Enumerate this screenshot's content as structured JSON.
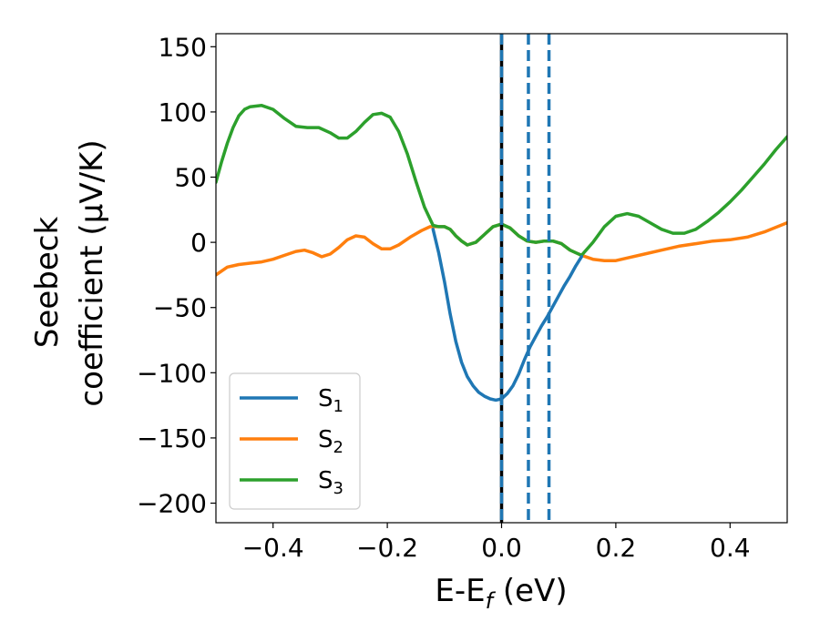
{
  "chart_data": {
    "type": "line",
    "xlabel_main": "E-E",
    "xlabel_sub": "f",
    "xlabel_unit": " (eV)",
    "ylabel_line1": "Seebeck",
    "ylabel_line2": "coefficient  (μV/K)",
    "xlim": [
      -0.5,
      0.5
    ],
    "ylim": [
      -215,
      160
    ],
    "x_ticks": [
      -0.4,
      -0.2,
      0.0,
      0.2,
      0.4
    ],
    "x_tick_labels": [
      "−0.4",
      "−0.2",
      "0.0",
      "0.2",
      "0.4"
    ],
    "y_ticks": [
      -200,
      -150,
      -100,
      -50,
      0,
      50,
      100,
      150
    ],
    "y_tick_labels": [
      "−200",
      "−150",
      "−100",
      "−50",
      "0",
      "50",
      "100",
      "150"
    ],
    "grid": false,
    "legend_position": "lower-left",
    "series": [
      {
        "name_main": "S",
        "name_sub": "1",
        "color": "#1f77b4",
        "points": [
          [
            -0.12,
            10
          ],
          [
            -0.11,
            -8
          ],
          [
            -0.1,
            -30
          ],
          [
            -0.09,
            -55
          ],
          [
            -0.08,
            -76
          ],
          [
            -0.07,
            -92
          ],
          [
            -0.06,
            -103
          ],
          [
            -0.05,
            -110
          ],
          [
            -0.04,
            -115
          ],
          [
            -0.03,
            -118
          ],
          [
            -0.02,
            -120
          ],
          [
            -0.01,
            -121
          ],
          [
            0.0,
            -120
          ],
          [
            0.01,
            -116
          ],
          [
            0.02,
            -110
          ],
          [
            0.03,
            -101
          ],
          [
            0.04,
            -90
          ],
          [
            0.05,
            -80
          ],
          [
            0.06,
            -72
          ],
          [
            0.07,
            -64
          ],
          [
            0.08,
            -57
          ],
          [
            0.09,
            -49
          ],
          [
            0.1,
            -41
          ],
          [
            0.11,
            -33
          ],
          [
            0.12,
            -26
          ],
          [
            0.13,
            -18
          ],
          [
            0.14,
            -11
          ]
        ]
      },
      {
        "name_main": "S",
        "name_sub": "2",
        "color": "#ff7f0e",
        "points": [
          [
            -0.5,
            -25
          ],
          [
            -0.48,
            -19
          ],
          [
            -0.46,
            -17
          ],
          [
            -0.44,
            -16
          ],
          [
            -0.42,
            -15
          ],
          [
            -0.4,
            -13
          ],
          [
            -0.38,
            -10
          ],
          [
            -0.36,
            -7
          ],
          [
            -0.345,
            -6
          ],
          [
            -0.33,
            -8
          ],
          [
            -0.315,
            -11
          ],
          [
            -0.3,
            -9
          ],
          [
            -0.285,
            -4
          ],
          [
            -0.27,
            2
          ],
          [
            -0.255,
            5
          ],
          [
            -0.24,
            4
          ],
          [
            -0.225,
            -1
          ],
          [
            -0.21,
            -5
          ],
          [
            -0.195,
            -5
          ],
          [
            -0.18,
            -2
          ],
          [
            -0.16,
            4
          ],
          [
            -0.14,
            9
          ],
          [
            -0.125,
            12
          ],
          [
            -0.11,
            12
          ],
          [
            -0.1,
            12
          ],
          [
            -0.09,
            10
          ],
          [
            -0.08,
            5
          ],
          [
            -0.07,
            1
          ],
          [
            -0.06,
            -2
          ],
          [
            -0.045,
            0
          ],
          [
            -0.03,
            6
          ],
          [
            -0.015,
            12
          ],
          [
            0.0,
            14
          ],
          [
            0.015,
            11
          ],
          [
            0.03,
            5
          ],
          [
            0.045,
            1
          ],
          [
            0.06,
            0
          ],
          [
            0.075,
            1
          ],
          [
            0.09,
            1
          ],
          [
            0.105,
            -1
          ],
          [
            0.12,
            -6
          ],
          [
            0.14,
            -10
          ],
          [
            0.16,
            -13
          ],
          [
            0.18,
            -14
          ],
          [
            0.2,
            -14
          ],
          [
            0.22,
            -12
          ],
          [
            0.25,
            -9
          ],
          [
            0.28,
            -6
          ],
          [
            0.31,
            -3
          ],
          [
            0.34,
            -1
          ],
          [
            0.37,
            1
          ],
          [
            0.4,
            2
          ],
          [
            0.43,
            4
          ],
          [
            0.46,
            8
          ],
          [
            0.5,
            15
          ]
        ]
      },
      {
        "name_main": "S",
        "name_sub": "3",
        "color": "#2ca02c",
        "points": [
          [
            -0.5,
            46
          ],
          [
            -0.49,
            62
          ],
          [
            -0.48,
            76
          ],
          [
            -0.47,
            88
          ],
          [
            -0.46,
            97
          ],
          [
            -0.45,
            102
          ],
          [
            -0.44,
            104
          ],
          [
            -0.42,
            105
          ],
          [
            -0.4,
            102
          ],
          [
            -0.38,
            95
          ],
          [
            -0.36,
            89
          ],
          [
            -0.34,
            88
          ],
          [
            -0.32,
            88
          ],
          [
            -0.3,
            84
          ],
          [
            -0.285,
            80
          ],
          [
            -0.27,
            80
          ],
          [
            -0.255,
            85
          ],
          [
            -0.24,
            92
          ],
          [
            -0.225,
            98
          ],
          [
            -0.21,
            99
          ],
          [
            -0.195,
            96
          ],
          [
            -0.18,
            85
          ],
          [
            -0.165,
            68
          ],
          [
            -0.15,
            47
          ],
          [
            -0.135,
            27
          ],
          [
            -0.12,
            13
          ],
          [
            -0.11,
            12
          ],
          [
            -0.1,
            12
          ],
          [
            -0.09,
            10
          ],
          [
            -0.08,
            5
          ],
          [
            -0.07,
            1
          ],
          [
            -0.06,
            -2
          ],
          [
            -0.045,
            0
          ],
          [
            -0.03,
            6
          ],
          [
            -0.015,
            12
          ],
          [
            0.0,
            14
          ],
          [
            0.015,
            11
          ],
          [
            0.03,
            5
          ],
          [
            0.045,
            1
          ],
          [
            0.06,
            0
          ],
          [
            0.075,
            1
          ],
          [
            0.09,
            1
          ],
          [
            0.105,
            -1
          ],
          [
            0.12,
            -6
          ],
          [
            0.14,
            -10
          ],
          [
            0.16,
            0
          ],
          [
            0.18,
            12
          ],
          [
            0.2,
            20
          ],
          [
            0.22,
            22
          ],
          [
            0.24,
            20
          ],
          [
            0.26,
            15
          ],
          [
            0.28,
            10
          ],
          [
            0.3,
            7
          ],
          [
            0.32,
            7
          ],
          [
            0.34,
            10
          ],
          [
            0.36,
            16
          ],
          [
            0.38,
            23
          ],
          [
            0.4,
            31
          ],
          [
            0.42,
            40
          ],
          [
            0.44,
            50
          ],
          [
            0.46,
            60
          ],
          [
            0.48,
            71
          ],
          [
            0.5,
            81
          ]
        ]
      }
    ],
    "vertical_lines": [
      {
        "x": 0.0,
        "style": "solid",
        "color": "#000000"
      },
      {
        "x": 0.0,
        "style": "dashed",
        "color": "#1f77b4"
      },
      {
        "x": 0.047,
        "style": "dashed",
        "color": "#1f77b4"
      },
      {
        "x": 0.083,
        "style": "dashed",
        "color": "#1f77b4"
      }
    ]
  }
}
